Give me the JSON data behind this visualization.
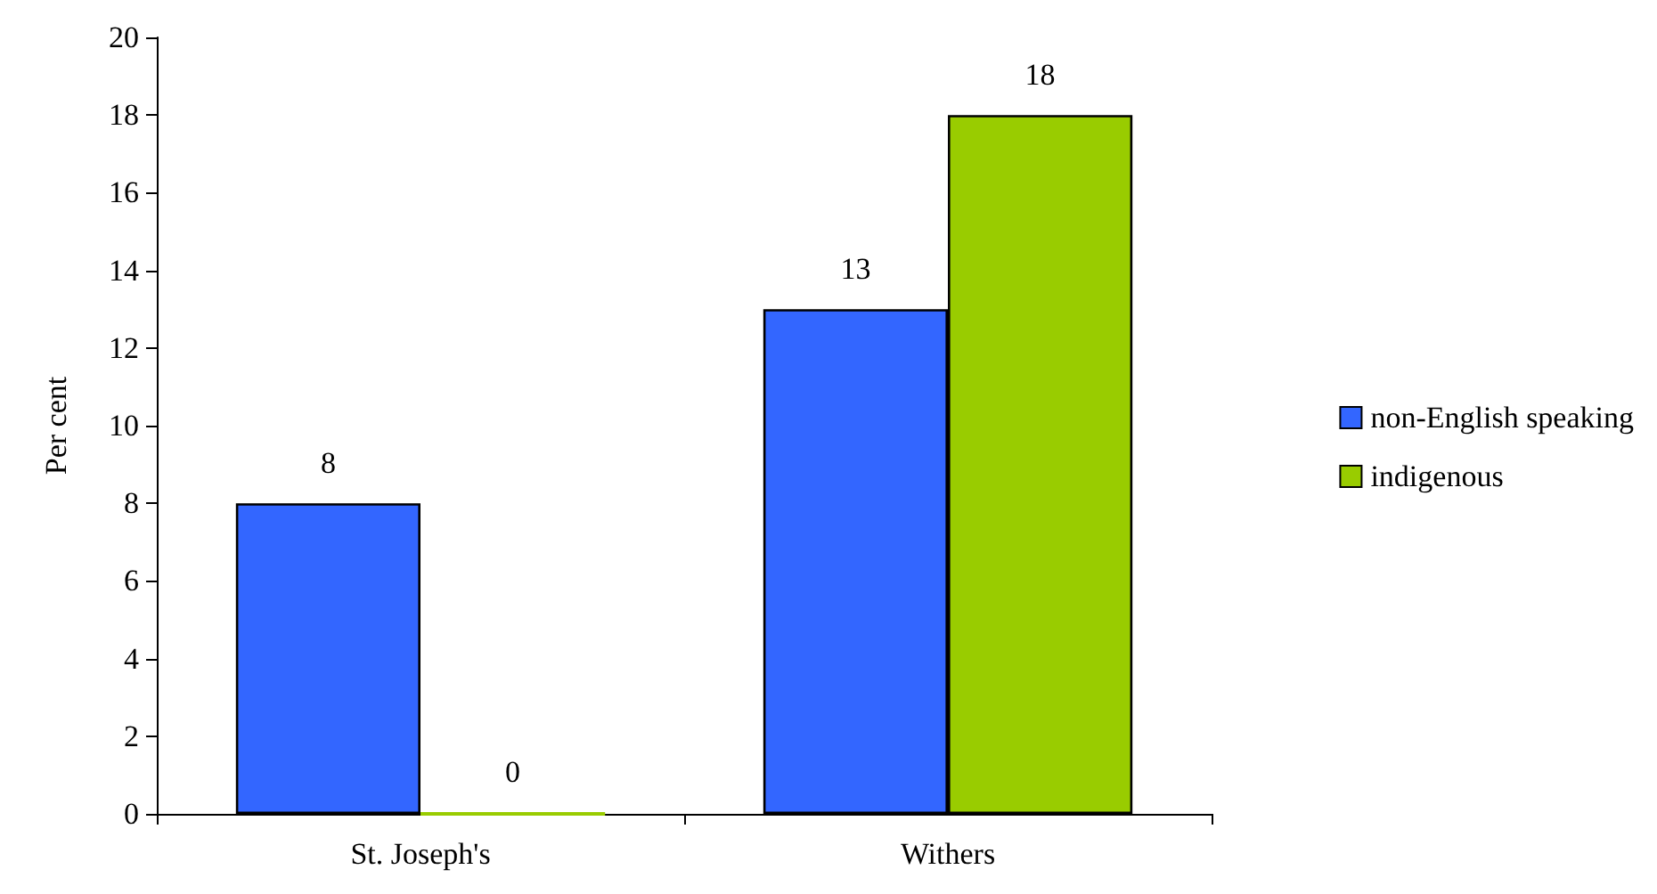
{
  "chart_data": {
    "type": "bar",
    "ylabel": "Per cent",
    "categories": [
      "St. Joseph's",
      "Withers"
    ],
    "series": [
      {
        "name": "non-English speaking",
        "color": "#3366ff",
        "values": [
          8,
          13
        ]
      },
      {
        "name": "indigenous",
        "color": "#99cc00",
        "values": [
          0,
          18
        ]
      }
    ],
    "ylim": [
      0,
      20
    ],
    "yticks": [
      0,
      2,
      4,
      6,
      8,
      10,
      12,
      14,
      16,
      18,
      20
    ],
    "grid": false,
    "legend": "right",
    "data_labels": true
  }
}
